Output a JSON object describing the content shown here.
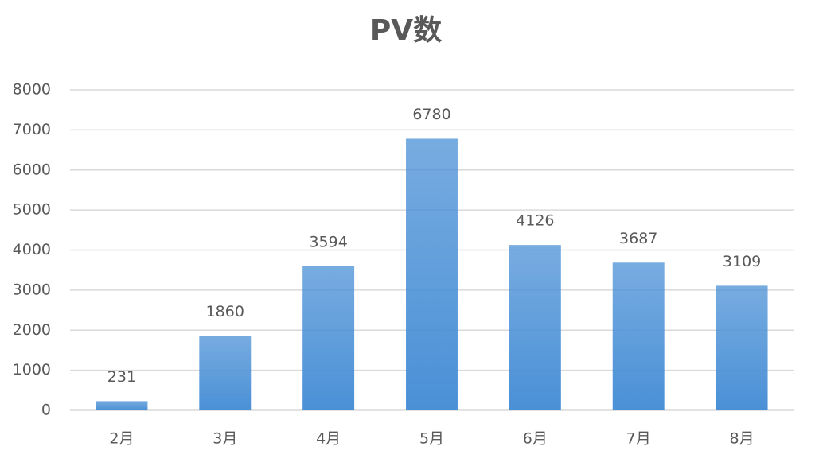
{
  "chart_data": {
    "type": "bar",
    "title": "PV数",
    "categories": [
      "2月",
      "3月",
      "4月",
      "5月",
      "6月",
      "7月",
      "8月"
    ],
    "values": [
      231,
      1860,
      3594,
      6780,
      4126,
      3687,
      3109
    ],
    "color": "#4a90d6",
    "ylim": [
      0,
      8000
    ],
    "yticks": [
      0,
      1000,
      2000,
      3000,
      4000,
      5000,
      6000,
      7000,
      8000
    ],
    "grid": true
  }
}
